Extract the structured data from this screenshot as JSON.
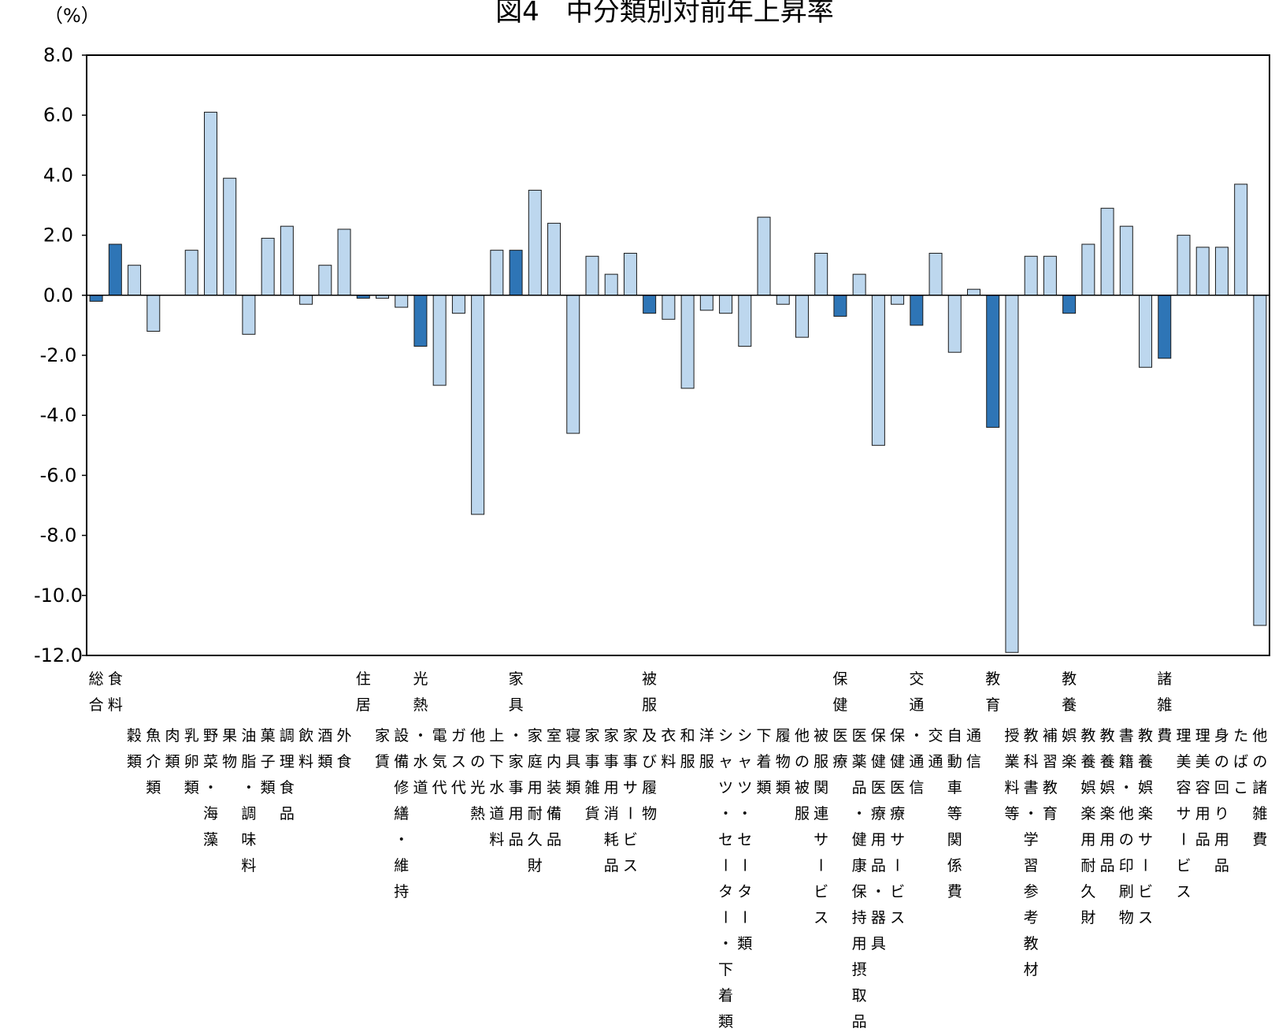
{
  "chart_data": {
    "type": "bar",
    "title": "図4　中分類別対前年上昇率",
    "ylabel": "（%）",
    "xlabel": "",
    "ylim": [
      -12,
      8
    ],
    "yticks": [
      "8.0",
      "6.0",
      "4.0",
      "2.0",
      "0.0",
      "-2.0",
      "-4.0",
      "-6.0",
      "-8.0",
      "-10.0",
      "-12.0"
    ],
    "grid": false,
    "legend": "none",
    "colors": {
      "major": "#2e75b6",
      "minor": "#bdd7ee"
    },
    "groups": [
      "総合",
      "食料",
      "住居",
      "光熱",
      "家具",
      "被服",
      "保健",
      "交通",
      "教育",
      "教養",
      "諸雑"
    ],
    "categories": [
      "総合",
      "食料",
      "穀類",
      "魚介類",
      "肉類",
      "乳卵類",
      "野菜・海藻",
      "果物",
      "油脂・調味料",
      "菓子類",
      "調理食品",
      "飲料",
      "酒類",
      "外食",
      "住居",
      "家賃",
      "設備修繕・維持",
      "光熱・水道",
      "電気代",
      "ガス代",
      "他の光熱",
      "上下水道料",
      "家具・家事用品",
      "家庭用耐久財",
      "室内装備品",
      "寝具類",
      "家事雑貨",
      "家事用消耗品",
      "家事サービス",
      "被服及び履物",
      "衣料",
      "和服",
      "洋服",
      "シャツ・セーター・下着類",
      "シャツ・セーター類",
      "下着類",
      "履物類",
      "他の被服類",
      "被服関連サービス",
      "保健医療",
      "医薬品・健康保持用摂取品",
      "保健医療用品・器具",
      "保健医療サービス",
      "交通・通信",
      "交通",
      "自動車等関係費",
      "通信",
      "教育",
      "授業料等",
      "教科書・学習参考教材",
      "補習教育",
      "教養娯楽",
      "教養娯楽用耐久財",
      "教養娯楽用品",
      "書籍・他の印刷物",
      "教養娯楽サービス",
      "諸雑費",
      "理美容サービス",
      "理美容用品",
      "身の回り用品",
      "たばこ",
      "他の諸雑費"
    ],
    "values": [
      -0.2,
      1.7,
      1.0,
      -1.2,
      0.0,
      1.5,
      6.1,
      3.9,
      -1.3,
      1.9,
      2.3,
      -0.3,
      1.0,
      2.2,
      -0.1,
      -0.1,
      -0.4,
      -1.7,
      -3.0,
      -0.6,
      -7.3,
      1.5,
      1.5,
      3.5,
      2.4,
      -4.6,
      1.3,
      0.7,
      1.4,
      -0.6,
      -0.8,
      -3.1,
      -0.5,
      -0.6,
      -1.7,
      2.6,
      -0.3,
      -1.4,
      1.4,
      -0.7,
      0.7,
      -5.0,
      -0.3,
      -1.0,
      1.4,
      -1.9,
      0.2,
      -4.4,
      -11.9,
      1.3,
      1.3,
      -0.6,
      1.7,
      2.9,
      2.3,
      -2.4,
      -2.1,
      2.0,
      1.6,
      1.6,
      3.7,
      -11.0
    ],
    "major": [
      true,
      true,
      false,
      false,
      false,
      false,
      false,
      false,
      false,
      false,
      false,
      false,
      false,
      false,
      true,
      false,
      false,
      true,
      false,
      false,
      false,
      false,
      true,
      false,
      false,
      false,
      false,
      false,
      false,
      true,
      false,
      false,
      false,
      false,
      false,
      false,
      false,
      false,
      false,
      true,
      false,
      false,
      false,
      true,
      false,
      false,
      false,
      true,
      false,
      false,
      false,
      true,
      false,
      false,
      false,
      false,
      true,
      false,
      false,
      false,
      false,
      false
    ],
    "labels": [
      [
        "総",
        "合"
      ],
      [
        "食",
        "料"
      ],
      [
        "穀",
        "類"
      ],
      [
        "魚",
        "介",
        "類"
      ],
      [
        "肉",
        "類"
      ],
      [
        "乳",
        "卵",
        "類"
      ],
      [
        "野",
        "菜",
        "・",
        "海",
        "藻"
      ],
      [
        "果",
        "物"
      ],
      [
        "油",
        "脂",
        "・",
        "調",
        "味",
        "料"
      ],
      [
        "菓",
        "子",
        "類"
      ],
      [
        "調",
        "理",
        "食",
        "品"
      ],
      [
        "飲",
        "料"
      ],
      [
        "酒",
        "類"
      ],
      [
        "外",
        "食"
      ],
      [
        "住",
        "居"
      ],
      [
        "家",
        "賃"
      ],
      [
        "設",
        "備",
        "修",
        "繕",
        "・",
        "維",
        "持"
      ],
      [
        "光",
        "熱",
        "・",
        "水",
        "道"
      ],
      [
        "電",
        "気",
        "代"
      ],
      [
        "ガ",
        "ス",
        "代"
      ],
      [
        "他",
        "の",
        "光",
        "熱"
      ],
      [
        "上",
        "下",
        "水",
        "道",
        "料"
      ],
      [
        "家",
        "具",
        "・",
        "家",
        "事",
        "用",
        "品"
      ],
      [
        "家",
        "庭",
        "用",
        "耐",
        "久",
        "財"
      ],
      [
        "室",
        "内",
        "装",
        "備",
        "品"
      ],
      [
        "寝",
        "具",
        "類"
      ],
      [
        "家",
        "事",
        "雑",
        "貨"
      ],
      [
        "家",
        "事",
        "用",
        "消",
        "耗",
        "品"
      ],
      [
        "家",
        "事",
        "サ",
        "ー",
        "ビ",
        "ス"
      ],
      [
        "被",
        "服",
        "及",
        "び",
        "履",
        "物"
      ],
      [
        "衣",
        "料"
      ],
      [
        "和",
        "服"
      ],
      [
        "洋",
        "服"
      ],
      [
        "シ",
        "ャ",
        "ツ",
        "・",
        "セ",
        "ー",
        "タ",
        "ー",
        "・",
        "下",
        "着",
        "類"
      ],
      [
        "シ",
        "ャ",
        "ツ",
        "・",
        "セ",
        "ー",
        "タ",
        "ー",
        "類"
      ],
      [
        "下",
        "着",
        "類"
      ],
      [
        "履",
        "物",
        "類"
      ],
      [
        "他",
        "の",
        "被",
        "服"
      ],
      [
        "被",
        "服",
        "関",
        "連",
        "サ",
        "ー",
        "ビ",
        "ス"
      ],
      [
        "保",
        "健",
        "医",
        "療"
      ],
      [
        "医",
        "薬",
        "品",
        "・",
        "健",
        "康",
        "保",
        "持",
        "用",
        "摂",
        "取",
        "品"
      ],
      [
        "保",
        "健",
        "医",
        "療",
        "用",
        "品",
        "・",
        "器",
        "具"
      ],
      [
        "保",
        "健",
        "医",
        "療",
        "サ",
        "ー",
        "ビ",
        "ス"
      ],
      [
        "交",
        "通",
        "・",
        "通",
        "信"
      ],
      [
        "交",
        "通"
      ],
      [
        "自",
        "動",
        "車",
        "等",
        "関",
        "係",
        "費"
      ],
      [
        "通",
        "信"
      ],
      [
        "教",
        "育"
      ],
      [
        "授",
        "業",
        "料",
        "等"
      ],
      [
        "教",
        "科",
        "書",
        "・",
        "学",
        "習",
        "参",
        "考",
        "教",
        "材"
      ],
      [
        "補",
        "習",
        "教",
        "育"
      ],
      [
        "教",
        "養",
        "娯",
        "楽"
      ],
      [
        "教",
        "養",
        "娯",
        "楽",
        "用",
        "耐",
        "久",
        "財"
      ],
      [
        "教",
        "養",
        "娯",
        "楽",
        "用",
        "品"
      ],
      [
        "書",
        "籍",
        "・",
        "他",
        "の",
        "印",
        "刷",
        "物"
      ],
      [
        "教",
        "養",
        "娯",
        "楽",
        "サ",
        "ー",
        "ビ",
        "ス"
      ],
      [
        "諸",
        "雑",
        "費"
      ],
      [
        "理",
        "美",
        "容",
        "サ",
        "ー",
        "ビ",
        "ス"
      ],
      [
        "理",
        "美",
        "容",
        "用",
        "品"
      ],
      [
        "身",
        "の",
        "回",
        "り",
        "用",
        "品"
      ],
      [
        "た",
        "ば",
        "こ"
      ],
      [
        "他",
        "の",
        "諸",
        "雑",
        "費"
      ]
    ]
  }
}
